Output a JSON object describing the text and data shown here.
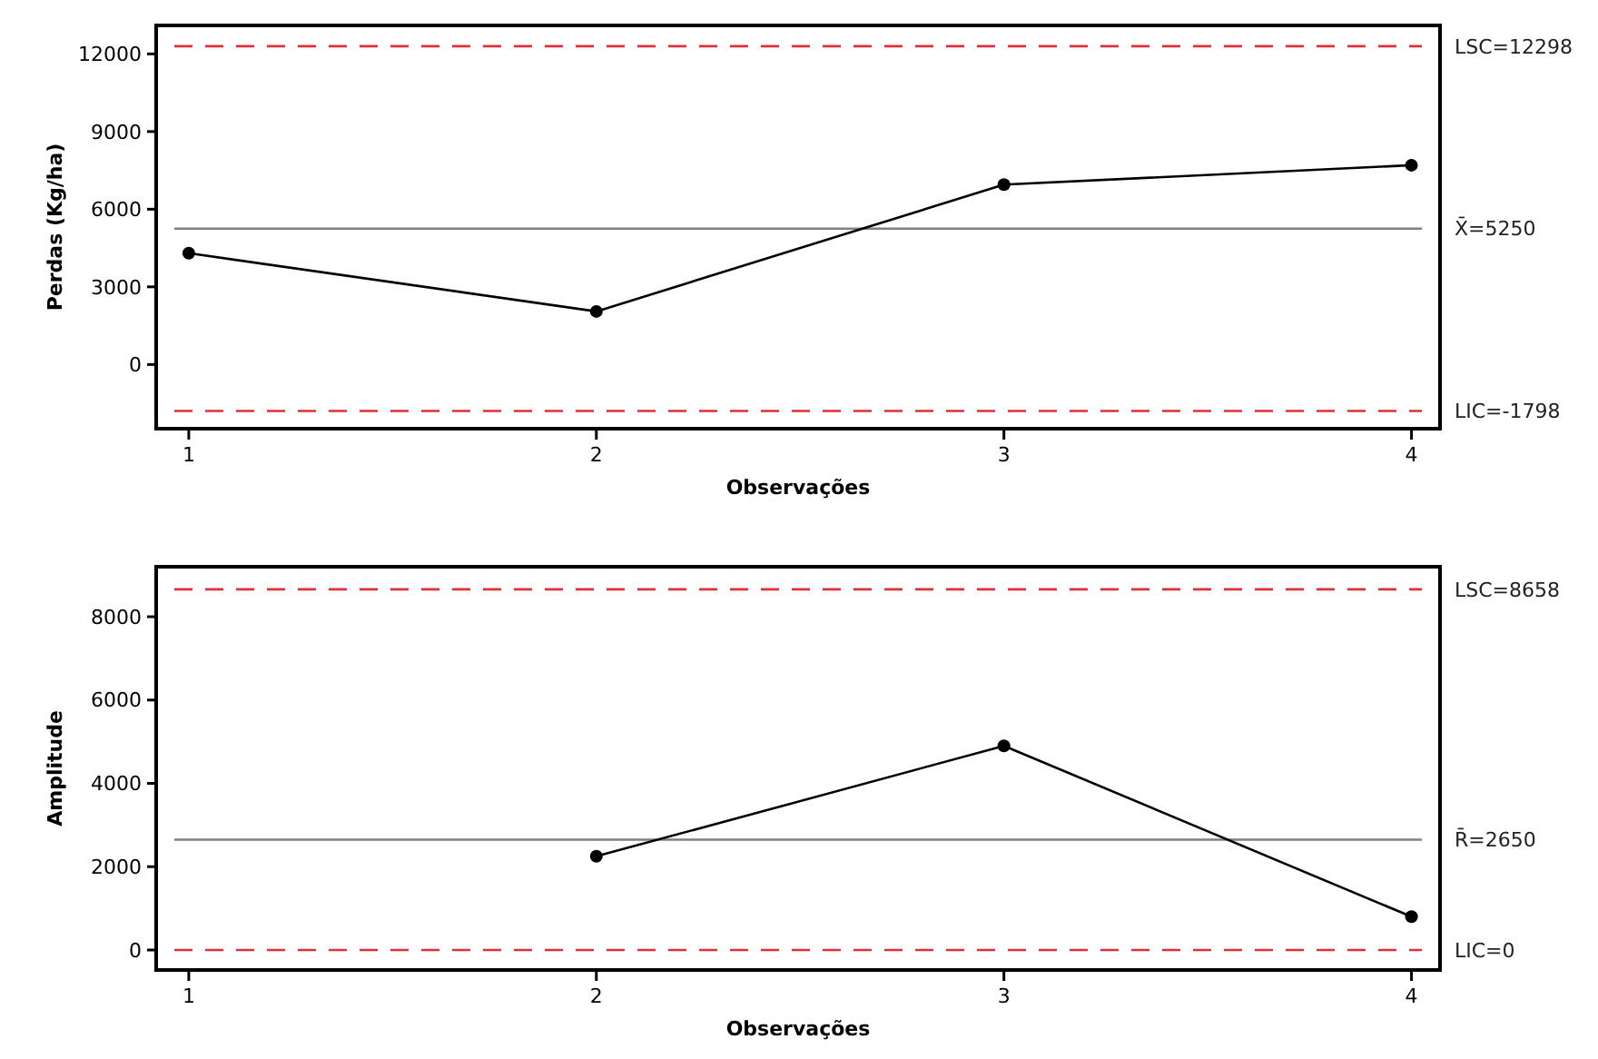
{
  "chart_data": [
    {
      "type": "line",
      "x": [
        1,
        2,
        3,
        4
      ],
      "xlim": [
        0.92,
        4.07
      ],
      "xticks": [
        1,
        2,
        3,
        4
      ],
      "ylim": [
        -2480,
        13100
      ],
      "yticks": [
        0,
        3000,
        6000,
        9000,
        12000
      ],
      "xlabel": "Observações",
      "ylabel": "Perdas (Kg/ha)",
      "marker": "circle",
      "grid": false,
      "series": [
        {
          "color": "#000000",
          "values": [
            4300,
            2050,
            6950,
            7700
          ]
        }
      ],
      "ref_lines": [
        {
          "axis": "y",
          "value": 12298,
          "label": "LSC=12298",
          "color": "#e0303a",
          "line_style": "dashed"
        },
        {
          "axis": "y",
          "value": 5250,
          "label": "X̄=5250",
          "color": "#808080",
          "line_style": "solid"
        },
        {
          "axis": "y",
          "value": -1798,
          "label": "LIC=-1798",
          "color": "#e0303a",
          "line_style": "dashed"
        }
      ]
    },
    {
      "type": "line",
      "xlim": [
        0.92,
        4.07
      ],
      "xticks": [
        1,
        2,
        3,
        4
      ],
      "ylim": [
        -480,
        9200
      ],
      "yticks": [
        0,
        2000,
        4000,
        6000,
        8000
      ],
      "xlabel": "Observações",
      "ylabel": "Amplitude",
      "marker": "circle",
      "grid": false,
      "series": [
        {
          "color": "#000000",
          "x": [
            2,
            3,
            4
          ],
          "values": [
            2250,
            4900,
            800
          ]
        }
      ],
      "ref_lines": [
        {
          "axis": "y",
          "value": 8658,
          "label": "LSC=8658",
          "color": "#e0303a",
          "line_style": "dashed"
        },
        {
          "axis": "y",
          "value": 2650,
          "label": "R̄=2650",
          "color": "#808080",
          "line_style": "solid"
        },
        {
          "axis": "y",
          "value": 0,
          "label": "LIC=0",
          "color": "#e0303a",
          "line_style": "dashed"
        }
      ]
    }
  ]
}
